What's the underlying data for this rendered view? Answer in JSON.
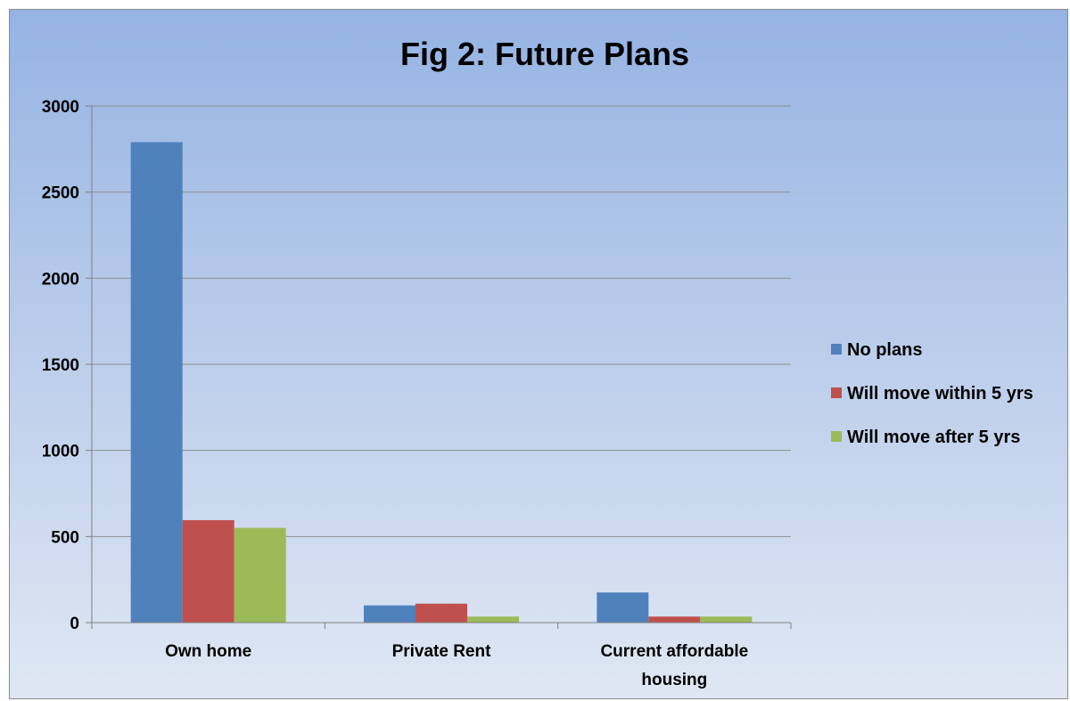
{
  "chart_data": {
    "type": "bar",
    "title": "Fig 2: Future Plans",
    "xlabel": "",
    "ylabel": "",
    "categories": [
      "Own home",
      "Private Rent",
      "Current affordable housing"
    ],
    "category_lines": [
      [
        "Own home"
      ],
      [
        "Private Rent"
      ],
      [
        "Current affordable",
        "housing"
      ]
    ],
    "series": [
      {
        "name": "No plans",
        "values": [
          2790,
          100,
          175
        ],
        "color": "#4f81bd"
      },
      {
        "name": "Will move within 5 yrs",
        "values": [
          595,
          110,
          35
        ],
        "color": "#c0504d"
      },
      {
        "name": "Will move after 5 yrs",
        "values": [
          550,
          35,
          35
        ],
        "color": "#9bbb59"
      }
    ],
    "ylim": [
      0,
      3000
    ],
    "yticks": [
      0,
      500,
      1000,
      1500,
      2000,
      2500,
      3000
    ],
    "grid": true,
    "legend_position": "right"
  }
}
